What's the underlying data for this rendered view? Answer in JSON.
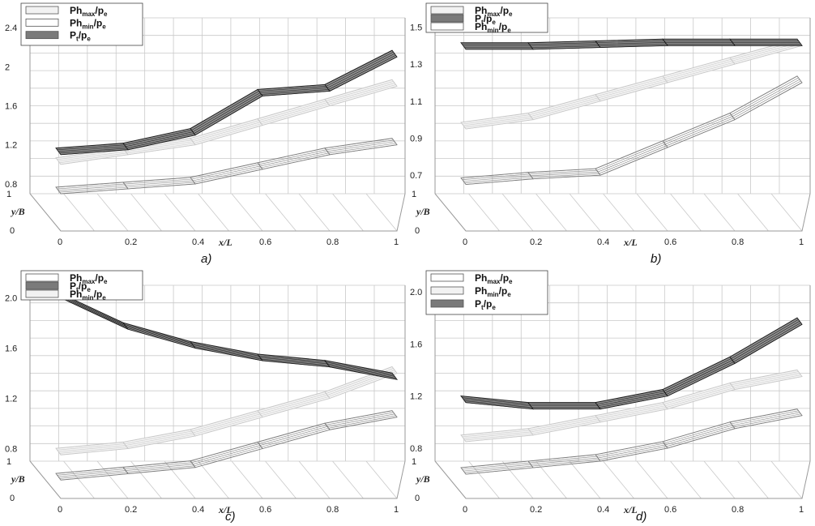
{
  "chart_data": [
    {
      "type": "surface",
      "panel_label": "a)",
      "xlabel": "x/L",
      "ylabel": "y/B",
      "x_ticks": [
        "0",
        "0.2",
        "0.4",
        "0.6",
        "0.8",
        "1"
      ],
      "y_ticks": [
        "0",
        "1"
      ],
      "z_ticks": [
        "0.8",
        "1.2",
        "1.6",
        "2",
        "2.4"
      ],
      "zlim": [
        0.7,
        2.5
      ],
      "legend": [
        {
          "label": "Ph",
          "sub": "max",
          "tail": "/p",
          "tailsub": "e",
          "fill": "#f2f2f2"
        },
        {
          "label": "Ph",
          "sub": "min",
          "tail": "/p",
          "tailsub": "e",
          "fill": "#ffffff"
        },
        {
          "label": "P",
          "sub": "t",
          "tail": "/p",
          "tailsub": "e",
          "fill": "#7a7a7a"
        }
      ],
      "series": [
        {
          "name": "Ph_max/p_e",
          "x": [
            0,
            0.2,
            0.4,
            0.6,
            0.8,
            1.0
          ],
          "z": [
            1.0,
            1.1,
            1.2,
            1.4,
            1.6,
            1.8
          ]
        },
        {
          "name": "Ph_min/p_e",
          "x": [
            0,
            0.2,
            0.4,
            0.6,
            0.8,
            1.0
          ],
          "z": [
            0.7,
            0.75,
            0.8,
            0.95,
            1.1,
            1.2
          ]
        },
        {
          "name": "P_t/p_e",
          "x": [
            0,
            0.2,
            0.4,
            0.6,
            0.8,
            1.0
          ],
          "z": [
            1.1,
            1.15,
            1.3,
            1.7,
            1.75,
            2.1
          ]
        }
      ]
    },
    {
      "type": "surface",
      "panel_label": "b)",
      "xlabel": "x/L",
      "ylabel": "y/B",
      "x_ticks": [
        "0",
        "0.2",
        "0.4",
        "0.6",
        "0.8",
        "1"
      ],
      "y_ticks": [
        "0",
        "1"
      ],
      "z_ticks": [
        "0.7",
        "0.9",
        "1.1",
        "1.3",
        "1.5"
      ],
      "zlim": [
        0.6,
        1.55
      ],
      "legend": [
        {
          "label": "Ph",
          "sub": "max",
          "tail": "/p",
          "tailsub": "e",
          "fill": "#f2f2f2"
        },
        {
          "label": "P",
          "sub": "t",
          "tail": "/p",
          "tailsub": "e",
          "fill": "#7a7a7a"
        },
        {
          "label": "Ph",
          "sub": "min",
          "tail": "/p",
          "tailsub": "e",
          "fill": "#ffffff"
        }
      ],
      "series": [
        {
          "name": "Ph_max/p_e",
          "x": [
            0,
            0.2,
            0.4,
            0.6,
            0.8,
            1.0
          ],
          "z": [
            0.95,
            1.0,
            1.1,
            1.2,
            1.3,
            1.4
          ]
        },
        {
          "name": "Ph_min/p_e",
          "x": [
            0,
            0.2,
            0.4,
            0.6,
            0.8,
            1.0
          ],
          "z": [
            0.65,
            0.68,
            0.7,
            0.85,
            1.0,
            1.2
          ]
        },
        {
          "name": "P_t/p_e",
          "x": [
            0,
            0.2,
            0.4,
            0.6,
            0.8,
            1.0
          ],
          "z": [
            1.38,
            1.38,
            1.39,
            1.4,
            1.4,
            1.4
          ]
        }
      ]
    },
    {
      "type": "surface",
      "panel_label": "c)",
      "xlabel": "x/L",
      "ylabel": "y/B",
      "x_ticks": [
        "0",
        "0.2",
        "0.4",
        "0.6",
        "0.8",
        "1"
      ],
      "y_ticks": [
        "0",
        "1"
      ],
      "z_ticks": [
        "0.8",
        "1.2",
        "1.6",
        "2.0"
      ],
      "zlim": [
        0.7,
        2.1
      ],
      "legend": [
        {
          "label": "Ph",
          "sub": "max",
          "tail": "/p",
          "tailsub": "e",
          "fill": "#ffffff"
        },
        {
          "label": "P",
          "sub": "t",
          "tail": "/p",
          "tailsub": "e",
          "fill": "#7a7a7a"
        },
        {
          "label": "Ph",
          "sub": "min",
          "tail": "/p",
          "tailsub": "e",
          "fill": "#f2f2f2"
        }
      ],
      "series": [
        {
          "name": "Ph_max/p_e",
          "x": [
            0,
            0.2,
            0.4,
            0.6,
            0.8,
            1.0
          ],
          "z": [
            0.75,
            0.8,
            0.9,
            1.05,
            1.2,
            1.4
          ]
        },
        {
          "name": "Ph_min/p_e",
          "x": [
            0,
            0.2,
            0.4,
            0.6,
            0.8,
            1.0
          ],
          "z": [
            0.55,
            0.6,
            0.65,
            0.8,
            0.95,
            1.05
          ]
        },
        {
          "name": "P_t/p_e",
          "x": [
            0,
            0.2,
            0.4,
            0.6,
            0.8,
            1.0
          ],
          "z": [
            2.0,
            1.75,
            1.6,
            1.5,
            1.45,
            1.35
          ]
        }
      ]
    },
    {
      "type": "surface",
      "panel_label": "d)",
      "xlabel": "x/L",
      "ylabel": "y/B",
      "x_ticks": [
        "0",
        "0.2",
        "0.4",
        "0.6",
        "0.8",
        "1"
      ],
      "y_ticks": [
        "0",
        "1"
      ],
      "z_ticks": [
        "0.8",
        "1.2",
        "1.6",
        "2.0"
      ],
      "zlim": [
        0.7,
        2.05
      ],
      "legend": [
        {
          "label": "Ph",
          "sub": "max",
          "tail": "/p",
          "tailsub": "e",
          "fill": "#ffffff"
        },
        {
          "label": "Ph",
          "sub": "min",
          "tail": "/p",
          "tailsub": "e",
          "fill": "#f2f2f2"
        },
        {
          "label": "P",
          "sub": "t",
          "tail": "/p",
          "tailsub": "e",
          "fill": "#7a7a7a"
        }
      ],
      "series": [
        {
          "name": "Ph_max/p_e",
          "x": [
            0,
            0.2,
            0.4,
            0.6,
            0.8,
            1.0
          ],
          "z": [
            0.85,
            0.9,
            1.0,
            1.1,
            1.25,
            1.35
          ]
        },
        {
          "name": "Ph_min/p_e",
          "x": [
            0,
            0.2,
            0.4,
            0.6,
            0.8,
            1.0
          ],
          "z": [
            0.6,
            0.65,
            0.7,
            0.8,
            0.95,
            1.05
          ]
        },
        {
          "name": "P_t/p_e",
          "x": [
            0,
            0.2,
            0.4,
            0.6,
            0.8,
            1.0
          ],
          "z": [
            1.15,
            1.1,
            1.1,
            1.2,
            1.45,
            1.75
          ]
        }
      ]
    }
  ]
}
